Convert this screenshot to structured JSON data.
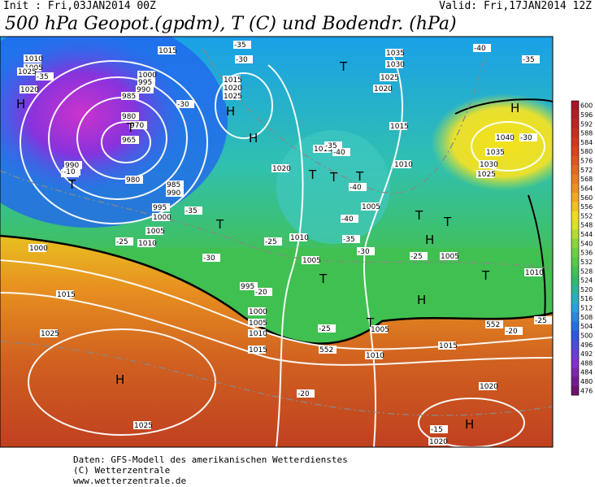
{
  "header": {
    "init": "Init : Fri,03JAN2014 00Z",
    "valid": "Valid: Fri,17JAN2014 12Z",
    "title": "500 hPa Geopot.(gpdm), T (C) und Bodendr. (hPa)"
  },
  "map": {
    "labels": [
      "1015",
      "1010",
      "1005",
      "1025",
      "1020",
      "1000",
      "995",
      "990",
      "985",
      "980",
      "970",
      "965",
      "990",
      "985",
      "980",
      "985",
      "990",
      "995",
      "1000",
      "1005",
      "1010",
      "1000",
      "1015",
      "1025",
      "1025",
      "1015",
      "1020",
      "1025",
      "1035",
      "1030",
      "1025",
      "1020",
      "1015",
      "1010",
      "1020",
      "1015",
      "1005",
      "1010",
      "1005",
      "995",
      "1000",
      "1005",
      "1010",
      "1015",
      "1005",
      "1010",
      "1015",
      "1005",
      "1010",
      "1040",
      "1035",
      "1030",
      "1025",
      "1020",
      "1020",
      "-35",
      "-30",
      "-35",
      "-30",
      "-35",
      "-25",
      "-30",
      "-25",
      "-20",
      "-35",
      "-40",
      "-40",
      "-40",
      "-35",
      "-30",
      "-25",
      "-25",
      "-20",
      "-15",
      "-40",
      "-35",
      "-30",
      "-20",
      "-25",
      "-10",
      "552",
      "552"
    ],
    "pressure_centers": [
      "H",
      "H",
      "H",
      "H",
      "H",
      "H",
      "H",
      "H",
      "T",
      "T",
      "T",
      "T",
      "T",
      "T",
      "T",
      "T",
      "T",
      "T",
      "T",
      "T"
    ]
  },
  "colorbar": {
    "ticks": [
      600,
      596,
      592,
      588,
      584,
      580,
      576,
      572,
      568,
      564,
      560,
      556,
      552,
      548,
      544,
      540,
      536,
      532,
      528,
      524,
      520,
      516,
      512,
      508,
      504,
      500,
      496,
      492,
      488,
      484,
      480,
      476
    ]
  },
  "footer": [
    "Daten: GFS-Modell des amerikanischen Wetterdienstes",
    "(C) Wetterzentrale",
    "www.wetterzentrale.de"
  ]
}
